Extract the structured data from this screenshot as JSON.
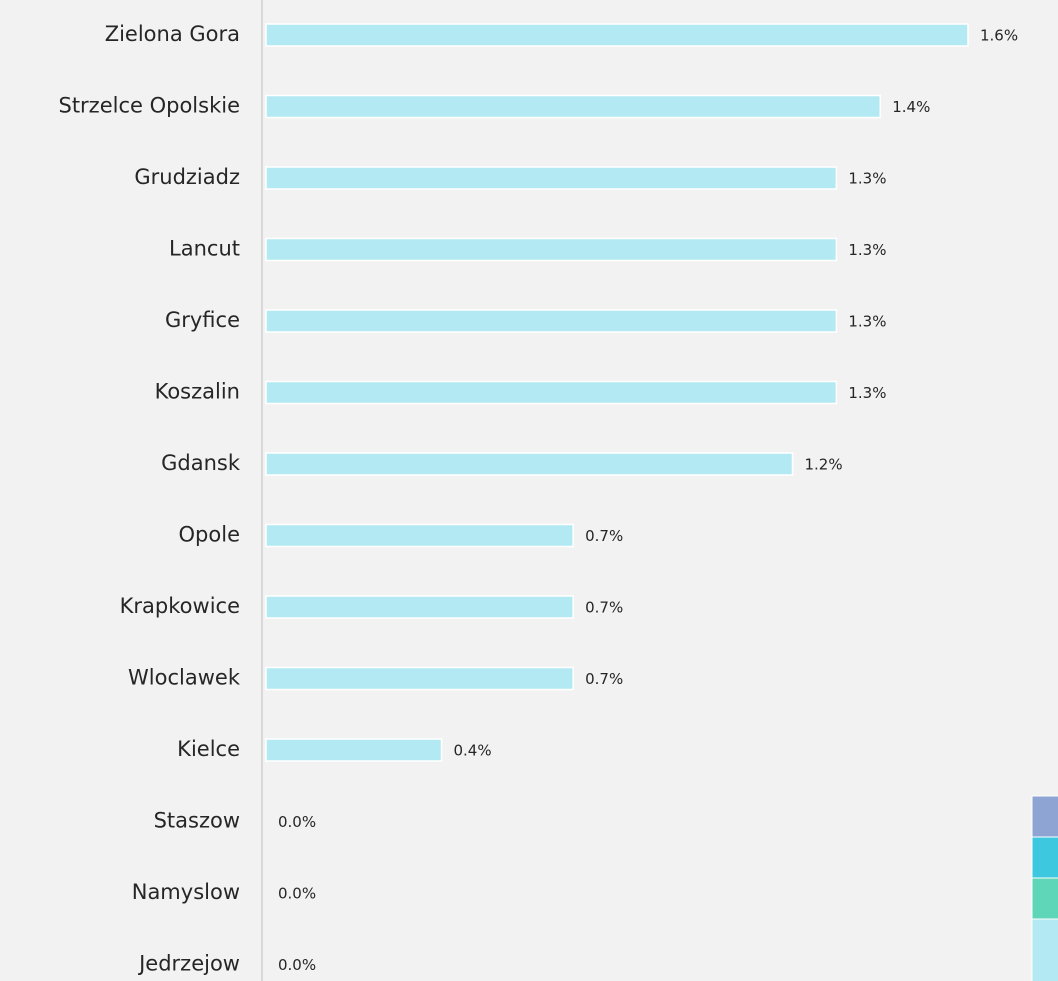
{
  "chart_data": {
    "type": "barh",
    "categories": [
      "Zielona Gora",
      "Strzelce Opolskie",
      "Grudziadz",
      "Lancut",
      "Gryfice",
      "Koszalin",
      "Gdansk",
      "Opole",
      "Krapkowice",
      "Wloclawek",
      "Kielce",
      "Staszow",
      "Namyslow",
      "Jedrzejow"
    ],
    "values": [
      1.6,
      1.4,
      1.3,
      1.3,
      1.3,
      1.3,
      1.2,
      0.7,
      0.7,
      0.7,
      0.4,
      0.0,
      0.0,
      0.0
    ],
    "value_labels": [
      "1.6%",
      "1.4%",
      "1.3%",
      "1.3%",
      "1.3%",
      "1.3%",
      "1.2%",
      "0.7%",
      "0.7%",
      "0.7%",
      "0.4%",
      "0.0%",
      "0.0%",
      "0.0%"
    ],
    "color": "#b3e9f2"
  }
}
